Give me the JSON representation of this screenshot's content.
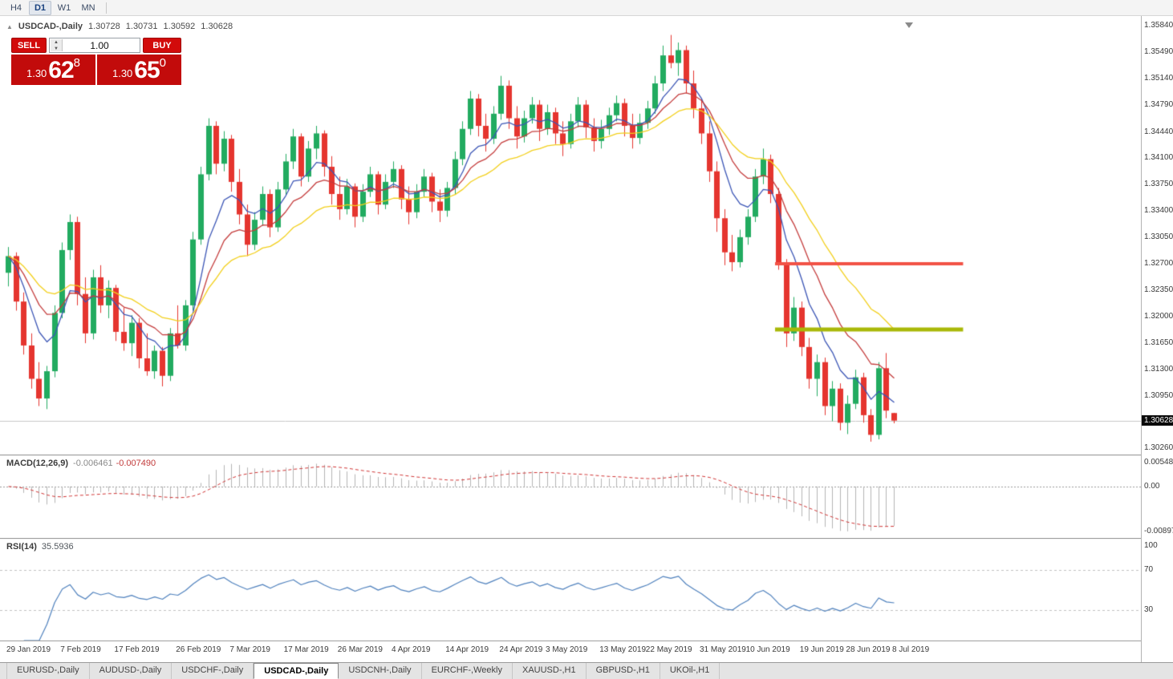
{
  "toolbar": {
    "timeframes": [
      {
        "label": "H4",
        "active": false
      },
      {
        "label": "D1",
        "active": true
      },
      {
        "label": "W1",
        "active": false
      },
      {
        "label": "MN",
        "active": false
      }
    ]
  },
  "icons": {
    "collapse_panel": "▲",
    "spinner_up": "▲",
    "spinner_down": "▼"
  },
  "chart_header": {
    "symbol_label": "USDCAD-,Daily",
    "open": "1.30728",
    "high": "1.30731",
    "low": "1.30592",
    "close": "1.30628"
  },
  "trade_panel": {
    "sell_label": "SELL",
    "buy_label": "BUY",
    "volume": "1.00",
    "sell_price_small": "1.30",
    "sell_price_big": "62",
    "sell_price_sup": "8",
    "buy_price_small": "1.30",
    "buy_price_big": "65",
    "buy_price_sup": "0"
  },
  "indicators": {
    "macd_title": "MACD(12,26,9)",
    "macd_main_value": "-0.006461",
    "macd_signal_value": "-0.007490",
    "rsi_title": "RSI(14)",
    "rsi_value": "35.5936"
  },
  "tabs": [
    {
      "label": "EURUSD-,Daily",
      "active": false
    },
    {
      "label": "AUDUSD-,Daily",
      "active": false
    },
    {
      "label": "USDCHF-,Daily",
      "active": false
    },
    {
      "label": "USDCAD-,Daily",
      "active": true
    },
    {
      "label": "USDCNH-,Daily",
      "active": false
    },
    {
      "label": "EURCHF-,Weekly",
      "active": false
    },
    {
      "label": "XAUUSD-,H1",
      "active": false
    },
    {
      "label": "GBPUSD-,H1",
      "active": false
    },
    {
      "label": "UKOil-,H1",
      "active": false
    }
  ],
  "colors": {
    "up": "#22ab60",
    "down": "#e5352f",
    "bid_line": "#c9c9c9",
    "accent_red": "#cf0a0a",
    "tag_bg": "#0a0a0a"
  },
  "chart_data": {
    "type": "candlestick",
    "symbol": "USDCAD",
    "period": "Daily",
    "price_range": [
      1.3018,
      1.3597
    ],
    "price_ticks": [
      "1.35840",
      "1.35490",
      "1.35140",
      "1.34790",
      "1.34440",
      "1.34100",
      "1.33750",
      "1.33400",
      "1.33050",
      "1.32700",
      "1.32350",
      "1.32000",
      "1.31650",
      "1.31300",
      "1.30950",
      "1.30260"
    ],
    "current_close": 1.30628,
    "current_price_text": "1.30628",
    "time_labels": [
      "29 Jan 2019",
      "7 Feb 2019",
      "17 Feb 2019",
      "26 Feb 2019",
      "7 Mar 2019",
      "17 Mar 2019",
      "26 Mar 2019",
      "4 Apr 2019",
      "14 Apr 2019",
      "24 Apr 2019",
      "3 May 2019",
      "13 May 2019",
      "22 May 2019",
      "31 May 2019",
      "10 Jun 2019",
      "19 Jun 2019",
      "28 Jun 2019",
      "8 Jul 2019"
    ],
    "time_tick_indices": [
      0,
      7,
      14,
      22,
      29,
      36,
      43,
      50,
      57,
      64,
      70,
      77,
      83,
      90,
      96,
      103,
      109,
      115
    ],
    "candles": [
      [
        1.3258,
        1.3292,
        1.324,
        1.328
      ],
      [
        1.328,
        1.3285,
        1.3208,
        1.322
      ],
      [
        1.322,
        1.3232,
        1.315,
        1.3162
      ],
      [
        1.3162,
        1.3178,
        1.3105,
        1.3118
      ],
      [
        1.3118,
        1.314,
        1.3082,
        1.3092
      ],
      [
        1.3092,
        1.3135,
        1.3078,
        1.3128
      ],
      [
        1.3128,
        1.3215,
        1.312,
        1.3205
      ],
      [
        1.3205,
        1.3298,
        1.3198,
        1.3288
      ],
      [
        1.3288,
        1.3335,
        1.3275,
        1.3325
      ],
      [
        1.3325,
        1.3332,
        1.3215,
        1.323
      ],
      [
        1.323,
        1.3252,
        1.3165,
        1.3178
      ],
      [
        1.3178,
        1.3262,
        1.317,
        1.3252
      ],
      [
        1.3252,
        1.3268,
        1.3205,
        1.3215
      ],
      [
        1.3215,
        1.3248,
        1.3198,
        1.3238
      ],
      [
        1.3238,
        1.3242,
        1.3168,
        1.318
      ],
      [
        1.318,
        1.3212,
        1.3155,
        1.3165
      ],
      [
        1.3165,
        1.3202,
        1.3148,
        1.3192
      ],
      [
        1.3192,
        1.3198,
        1.3132,
        1.3145
      ],
      [
        1.3145,
        1.3178,
        1.3122,
        1.3128
      ],
      [
        1.3128,
        1.3162,
        1.3118,
        1.3155
      ],
      [
        1.3155,
        1.316,
        1.3108,
        1.3122
      ],
      [
        1.3122,
        1.3185,
        1.3115,
        1.3178
      ],
      [
        1.3178,
        1.3215,
        1.3158,
        1.3162
      ],
      [
        1.3162,
        1.3222,
        1.3155,
        1.3215
      ],
      [
        1.3215,
        1.3312,
        1.3208,
        1.3302
      ],
      [
        1.3302,
        1.3398,
        1.3295,
        1.3388
      ],
      [
        1.3388,
        1.3462,
        1.338,
        1.3452
      ],
      [
        1.3452,
        1.3458,
        1.3388,
        1.3402
      ],
      [
        1.3402,
        1.3445,
        1.3392,
        1.3435
      ],
      [
        1.3435,
        1.344,
        1.3365,
        1.3378
      ],
      [
        1.3378,
        1.3395,
        1.3322,
        1.3335
      ],
      [
        1.3335,
        1.3348,
        1.328,
        1.3295
      ],
      [
        1.3295,
        1.3338,
        1.3288,
        1.3328
      ],
      [
        1.3328,
        1.3372,
        1.332,
        1.3362
      ],
      [
        1.3362,
        1.3368,
        1.3305,
        1.3318
      ],
      [
        1.3318,
        1.3378,
        1.3312,
        1.3368
      ],
      [
        1.3368,
        1.3415,
        1.336,
        1.3405
      ],
      [
        1.3405,
        1.3448,
        1.3395,
        1.3438
      ],
      [
        1.3438,
        1.3442,
        1.3372,
        1.3385
      ],
      [
        1.3385,
        1.3432,
        1.3378,
        1.3422
      ],
      [
        1.3422,
        1.3452,
        1.3408,
        1.3442
      ],
      [
        1.3442,
        1.3446,
        1.3385,
        1.3398
      ],
      [
        1.3398,
        1.3412,
        1.3348,
        1.3362
      ],
      [
        1.3362,
        1.3385,
        1.3328,
        1.3342
      ],
      [
        1.3342,
        1.3382,
        1.3335,
        1.3372
      ],
      [
        1.3372,
        1.3376,
        1.3318,
        1.3332
      ],
      [
        1.3332,
        1.3375,
        1.3325,
        1.3365
      ],
      [
        1.3365,
        1.3398,
        1.3358,
        1.3388
      ],
      [
        1.3388,
        1.3392,
        1.3335,
        1.3348
      ],
      [
        1.3348,
        1.3388,
        1.3342,
        1.3378
      ],
      [
        1.3378,
        1.3405,
        1.337,
        1.3395
      ],
      [
        1.3395,
        1.34,
        1.3342,
        1.3355
      ],
      [
        1.3355,
        1.3372,
        1.3322,
        1.3338
      ],
      [
        1.3338,
        1.3375,
        1.333,
        1.3365
      ],
      [
        1.3365,
        1.3395,
        1.3358,
        1.3385
      ],
      [
        1.3385,
        1.339,
        1.3338,
        1.3352
      ],
      [
        1.3352,
        1.3368,
        1.3325,
        1.334
      ],
      [
        1.334,
        1.3378,
        1.3332,
        1.337
      ],
      [
        1.337,
        1.3418,
        1.3362,
        1.3408
      ],
      [
        1.3408,
        1.3458,
        1.34,
        1.3448
      ],
      [
        1.3448,
        1.3498,
        1.344,
        1.3488
      ],
      [
        1.3488,
        1.3494,
        1.3438,
        1.3452
      ],
      [
        1.3452,
        1.3468,
        1.3418,
        1.3435
      ],
      [
        1.3435,
        1.3478,
        1.3428,
        1.3468
      ],
      [
        1.3468,
        1.3518,
        1.346,
        1.3505
      ],
      [
        1.3505,
        1.3512,
        1.3448,
        1.3462
      ],
      [
        1.3462,
        1.3478,
        1.3422,
        1.3438
      ],
      [
        1.3438,
        1.3472,
        1.343,
        1.3462
      ],
      [
        1.3462,
        1.349,
        1.3455,
        1.348
      ],
      [
        1.348,
        1.3486,
        1.3432,
        1.3448
      ],
      [
        1.3448,
        1.348,
        1.344,
        1.347
      ],
      [
        1.347,
        1.3476,
        1.3428,
        1.3442
      ],
      [
        1.3442,
        1.3458,
        1.3412,
        1.3428
      ],
      [
        1.3428,
        1.3468,
        1.3422,
        1.3458
      ],
      [
        1.3458,
        1.349,
        1.345,
        1.348
      ],
      [
        1.348,
        1.3486,
        1.3436,
        1.345
      ],
      [
        1.345,
        1.3462,
        1.3418,
        1.3432
      ],
      [
        1.3432,
        1.346,
        1.3422,
        1.3448
      ],
      [
        1.3448,
        1.3476,
        1.344,
        1.3466
      ],
      [
        1.3466,
        1.3492,
        1.3458,
        1.3482
      ],
      [
        1.3482,
        1.3488,
        1.3438,
        1.3452
      ],
      [
        1.3452,
        1.3468,
        1.3422,
        1.3436
      ],
      [
        1.3436,
        1.3468,
        1.3428,
        1.3456
      ],
      [
        1.3456,
        1.3485,
        1.3448,
        1.3475
      ],
      [
        1.3475,
        1.3518,
        1.3468,
        1.3508
      ],
      [
        1.3508,
        1.3558,
        1.3498,
        1.3545
      ],
      [
        1.3545,
        1.3572,
        1.3528,
        1.3535
      ],
      [
        1.3535,
        1.3562,
        1.3518,
        1.3552
      ],
      [
        1.3552,
        1.3558,
        1.3495,
        1.3508
      ],
      [
        1.3508,
        1.3525,
        1.3462,
        1.3475
      ],
      [
        1.3475,
        1.3488,
        1.3428,
        1.3442
      ],
      [
        1.3442,
        1.3458,
        1.3378,
        1.3392
      ],
      [
        1.3392,
        1.3405,
        1.3312,
        1.333
      ],
      [
        1.333,
        1.3342,
        1.3268,
        1.3285
      ],
      [
        1.3285,
        1.3308,
        1.326,
        1.3272
      ],
      [
        1.3272,
        1.3315,
        1.3265,
        1.3305
      ],
      [
        1.3305,
        1.3342,
        1.3295,
        1.3332
      ],
      [
        1.3332,
        1.3395,
        1.3325,
        1.3385
      ],
      [
        1.3385,
        1.3422,
        1.3375,
        1.3408
      ],
      [
        1.3408,
        1.3414,
        1.335,
        1.3362
      ],
      [
        1.3362,
        1.337,
        1.3262,
        1.327
      ],
      [
        1.327,
        1.3276,
        1.316,
        1.3178
      ],
      [
        1.3178,
        1.3226,
        1.3168,
        1.3212
      ],
      [
        1.3212,
        1.322,
        1.3148,
        1.316
      ],
      [
        1.316,
        1.3172,
        1.3105,
        1.3118
      ],
      [
        1.3118,
        1.315,
        1.3095,
        1.314
      ],
      [
        1.314,
        1.3146,
        1.307,
        1.3082
      ],
      [
        1.3082,
        1.3115,
        1.3062,
        1.3105
      ],
      [
        1.3105,
        1.3112,
        1.305,
        1.306
      ],
      [
        1.306,
        1.3096,
        1.3045,
        1.3085
      ],
      [
        1.3085,
        1.313,
        1.3078,
        1.312
      ],
      [
        1.312,
        1.3126,
        1.306,
        1.307
      ],
      [
        1.307,
        1.3078,
        1.3035,
        1.3044
      ],
      [
        1.3044,
        1.314,
        1.3038,
        1.3132
      ],
      [
        1.3132,
        1.3152,
        1.3066,
        1.3076
      ],
      [
        1.30728,
        1.30731,
        1.30592,
        1.30628
      ]
    ],
    "ma_overlays": [
      {
        "name": "ma-fast",
        "period": 7,
        "color": "#3b55b5"
      },
      {
        "name": "ma-mid",
        "period": 13,
        "color": "#c43c3c"
      },
      {
        "name": "ma-slow",
        "period": 24,
        "color": "#f2cf1b"
      }
    ],
    "hlines": [
      {
        "name": "resistance-line",
        "price": 1.327,
        "color": "#f25246",
        "width": 4,
        "from_index": 100,
        "to_index": 124
      },
      {
        "name": "support-line",
        "price": 1.3183,
        "color": "#a9b808",
        "width": 5,
        "from_index": 100,
        "to_index": 124
      }
    ],
    "macd": {
      "fast": 12,
      "slow": 26,
      "signal_period": 9,
      "range": [
        -0.0105,
        0.0062
      ],
      "axis_labels": {
        "top": "0.005484",
        "zero": "0.00",
        "bottom": "-0.008974"
      },
      "hist_color": "#b5b5b5",
      "signal_color": "#cf3333"
    },
    "rsi": {
      "period": 14,
      "range": [
        0,
        100
      ],
      "levels": [
        70,
        30
      ],
      "axis_labels": [
        "100",
        "70",
        "30"
      ],
      "line_color": "#4f81bd"
    }
  }
}
